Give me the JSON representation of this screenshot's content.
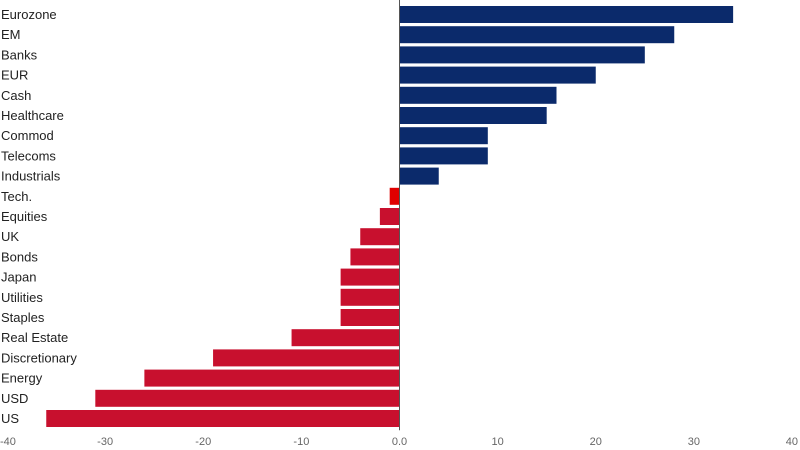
{
  "chart_data": {
    "type": "bar",
    "orientation": "horizontal",
    "categories": [
      "Eurozone",
      "EM",
      "Banks",
      "EUR",
      "Cash",
      "Healthcare",
      "Commod",
      "Telecoms",
      "Industrials",
      "Tech.",
      "Equities",
      "UK",
      "Bonds",
      "Japan",
      "Utilities",
      "Staples",
      "Real Estate",
      "Discretionary",
      "Energy",
      "USD",
      "US"
    ],
    "values": [
      34,
      28,
      25,
      20,
      16,
      15,
      9,
      9,
      4,
      -1,
      -2,
      -4,
      -5,
      -6,
      -6,
      -6,
      -11,
      -19,
      -26,
      -31,
      -36
    ],
    "title": "",
    "xlabel": "",
    "ylabel": "",
    "xlim": [
      -40,
      40
    ],
    "x_ticks": [
      -40,
      -30,
      -20,
      -10,
      0,
      10,
      20,
      30,
      40
    ],
    "x_tick_labels": [
      "-40",
      "-30",
      "-20",
      "-10",
      "0.0",
      "10",
      "20",
      "30",
      "40"
    ],
    "grid": false,
    "legend": "none",
    "colors": {
      "positive": "#0b2a6b",
      "negative": "#c8102e",
      "highlight_negative": "#e00000",
      "axis": "#555555"
    },
    "highlighted_categories": [
      "Tech."
    ]
  }
}
